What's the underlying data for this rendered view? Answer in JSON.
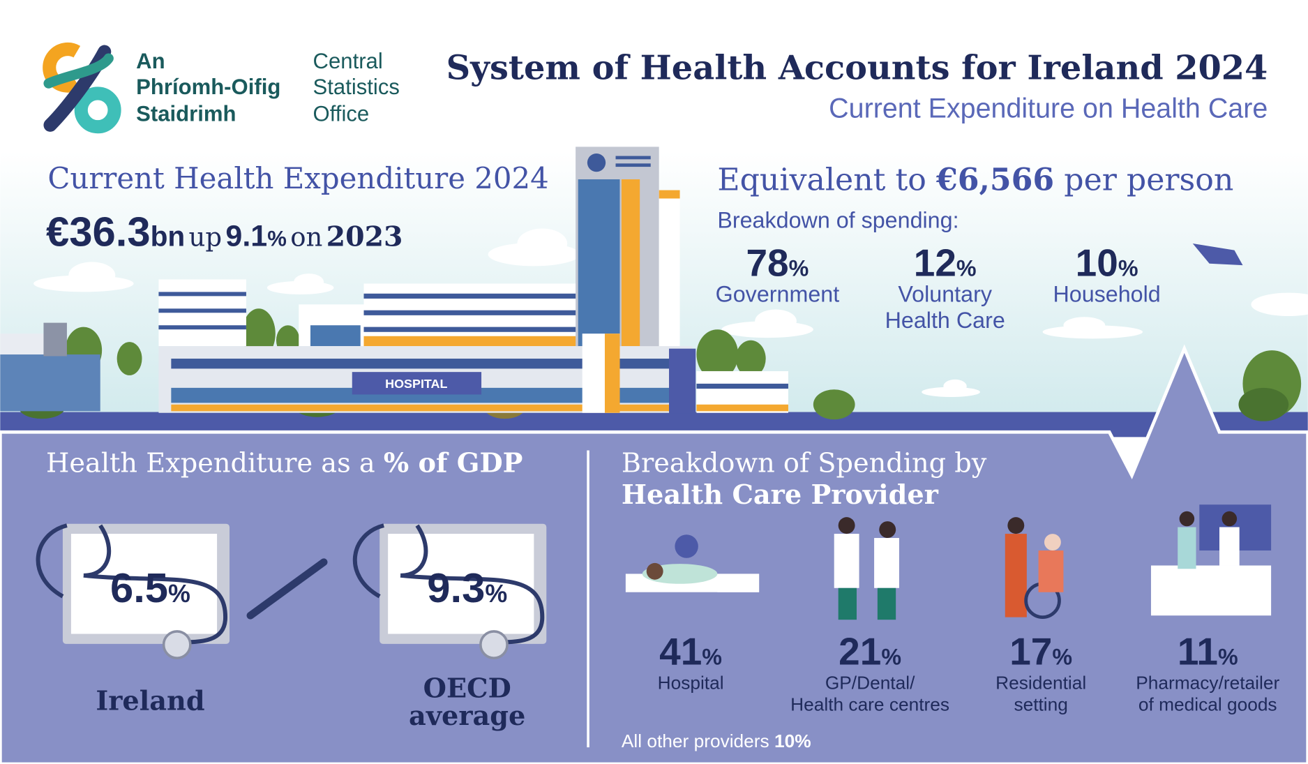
{
  "logo": {
    "irish": [
      "An",
      "Phríomh-Oifig",
      "Staidrimh"
    ],
    "english": [
      "Central",
      "Statistics",
      "Office"
    ]
  },
  "header": {
    "title": "System of Health Accounts for Ireland 2024",
    "subtitle": "Current Expenditure on Health Care"
  },
  "expenditure": {
    "heading": "Current Health Expenditure 2024",
    "amount": "€36.3",
    "amount_unit": "bn",
    "up": "up",
    "change": 9.1,
    "change_unit": "%",
    "on": "on",
    "year": 2023
  },
  "per_person": {
    "prefix": "Equivalent to",
    "amount": "€6,566",
    "suffix": "per person"
  },
  "spending": {
    "heading": "Breakdown of spending:",
    "items": [
      {
        "value": 78,
        "unit": "%",
        "label": [
          "Government"
        ]
      },
      {
        "value": 12,
        "unit": "%",
        "label": [
          "Voluntary",
          "Health Care"
        ]
      },
      {
        "value": 10,
        "unit": "%",
        "label": [
          "Household"
        ]
      }
    ]
  },
  "hospital_sign": "HOSPITAL",
  "gdp": {
    "heading": "Health Expenditure as a",
    "heading_bold": "% of GDP",
    "items": [
      {
        "value": 6.5,
        "unit": "%",
        "label": [
          "Ireland"
        ]
      },
      {
        "value": 9.3,
        "unit": "%",
        "label": [
          "OECD",
          "average"
        ]
      }
    ]
  },
  "providers": {
    "heading": "Breakdown of Spending by",
    "heading_bold": "Health Care Provider",
    "items": [
      {
        "value": 41,
        "unit": "%",
        "label": [
          "Hospital"
        ]
      },
      {
        "value": 21,
        "unit": "%",
        "label": [
          "GP/Dental/",
          "Health care centres"
        ]
      },
      {
        "value": 17,
        "unit": "%",
        "label": [
          "Residential",
          "setting"
        ]
      },
      {
        "value": 11,
        "unit": "%",
        "label": [
          "Pharmacy/retailer",
          "of medical goods"
        ]
      }
    ],
    "other": {
      "label": "All other providers",
      "value": 10,
      "unit": "%"
    }
  }
}
